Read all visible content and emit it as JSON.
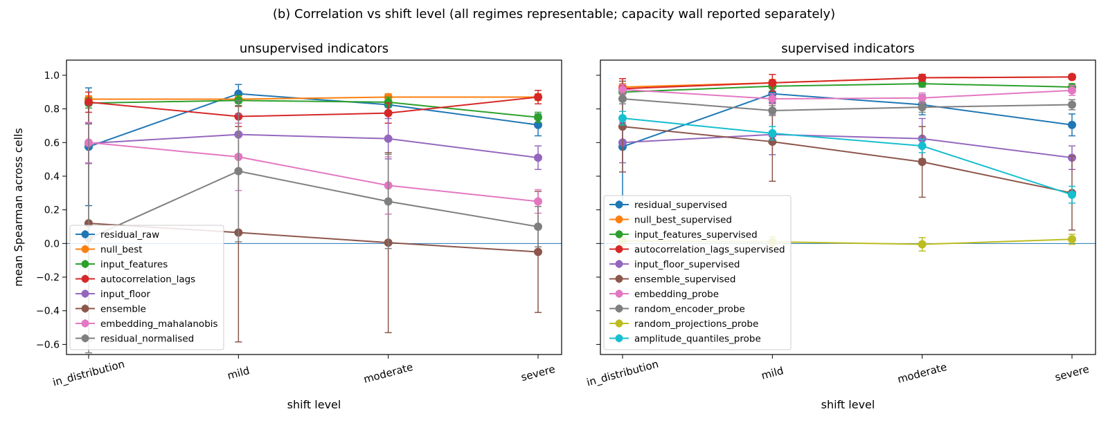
{
  "figure": {
    "suptitle": "(b) Correlation vs shift level (all regimes representable; capacity wall reported separately)"
  },
  "chart_data": [
    {
      "type": "line",
      "title": "unsupervised indicators",
      "xlabel": "shift level",
      "ylabel": "mean Spearman across cells",
      "categories": [
        "in_distribution",
        "mild",
        "moderate",
        "severe"
      ],
      "ylim": [
        -0.66,
        1.09
      ],
      "yticks": [
        "1.0",
        "0.8",
        "0.6",
        "0.4",
        "0.2",
        "0.0",
        "−0.2",
        "−0.4",
        "−0.6"
      ],
      "reference_line": 0,
      "grid": false,
      "legend_position": "lower-left",
      "series": [
        {
          "name": "residual_raw",
          "color": "#1f77b4",
          "values": [
            0.575,
            0.89,
            0.825,
            0.705
          ],
          "err_low": [
            0.35,
            0.055,
            0.06,
            0.065
          ],
          "err_high": [
            0.35,
            0.055,
            0.06,
            0.065
          ]
        },
        {
          "name": "null_best",
          "color": "#ff7f0e",
          "values": [
            0.858,
            0.858,
            0.87,
            0.87
          ],
          "err_low": [
            0.02,
            0.02,
            0.02,
            0.02
          ],
          "err_high": [
            0.02,
            0.02,
            0.02,
            0.02
          ]
        },
        {
          "name": "input_features",
          "color": "#2ca02c",
          "values": [
            0.835,
            0.85,
            0.84,
            0.75
          ],
          "err_low": [
            0.03,
            0.03,
            0.03,
            0.03
          ],
          "err_high": [
            0.03,
            0.03,
            0.03,
            0.03
          ]
        },
        {
          "name": "autocorrelation_lags",
          "color": "#d62728",
          "values": [
            0.84,
            0.755,
            0.775,
            0.87
          ],
          "err_low": [
            0.06,
            0.06,
            0.06,
            0.04
          ],
          "err_high": [
            0.06,
            0.06,
            0.06,
            0.04
          ]
        },
        {
          "name": "input_floor",
          "color": "#9467bd",
          "values": [
            0.595,
            0.648,
            0.623,
            0.51
          ],
          "err_low": [
            0.12,
            0.12,
            0.12,
            0.07
          ],
          "err_high": [
            0.12,
            0.12,
            0.12,
            0.07
          ]
        },
        {
          "name": "ensemble",
          "color": "#8c564b",
          "values": [
            0.12,
            0.065,
            0.005,
            -0.05
          ],
          "err_low": [
            0.7,
            0.65,
            0.535,
            0.36
          ],
          "err_high": [
            0.7,
            0.65,
            0.535,
            0.36
          ]
        },
        {
          "name": "embedding_mahalanobis",
          "color": "#e377c2",
          "values": [
            0.6,
            0.515,
            0.345,
            0.25
          ],
          "err_low": [
            0.12,
            0.2,
            0.17,
            0.07
          ],
          "err_high": [
            0.12,
            0.2,
            0.17,
            0.07
          ]
        },
        {
          "name": "residual_normalised",
          "color": "#7f7f7f",
          "values": [
            0.03,
            0.43,
            0.25,
            0.1
          ],
          "err_low": [
            0.68,
            0.42,
            0.28,
            0.12
          ],
          "err_high": [
            0.68,
            0.42,
            0.28,
            0.12
          ]
        }
      ]
    },
    {
      "type": "line",
      "title": "supervised indicators",
      "xlabel": "shift level",
      "ylabel": "",
      "categories": [
        "in_distribution",
        "mild",
        "moderate",
        "severe"
      ],
      "ylim": [
        -0.66,
        1.09
      ],
      "reference_line": 0,
      "grid": false,
      "legend_position": "lower-left",
      "series": [
        {
          "name": "residual_supervised",
          "color": "#1f77b4",
          "values": [
            0.575,
            0.89,
            0.825,
            0.705
          ],
          "err_low": [
            0.35,
            0.055,
            0.06,
            0.065
          ],
          "err_high": [
            0.35,
            0.055,
            0.06,
            0.065
          ]
        },
        {
          "name": "null_best_supervised",
          "color": "#ff7f0e",
          "values": [
            0.93,
            0.955,
            0.985,
            0.99
          ],
          "err_low": [
            0.02,
            0.02,
            0.02,
            0.015
          ],
          "err_high": [
            0.02,
            0.02,
            0.02,
            0.015
          ]
        },
        {
          "name": "input_features_supervised",
          "color": "#2ca02c",
          "values": [
            0.9,
            0.935,
            0.95,
            0.93
          ],
          "err_low": [
            0.03,
            0.03,
            0.02,
            0.02
          ],
          "err_high": [
            0.03,
            0.03,
            0.02,
            0.02
          ]
        },
        {
          "name": "autocorrelation_lags_supervised",
          "color": "#d62728",
          "values": [
            0.92,
            0.955,
            0.985,
            0.99
          ],
          "err_low": [
            0.06,
            0.05,
            0.02,
            0.015
          ],
          "err_high": [
            0.06,
            0.05,
            0.02,
            0.015
          ]
        },
        {
          "name": "input_floor_supervised",
          "color": "#9467bd",
          "values": [
            0.6,
            0.648,
            0.623,
            0.51
          ],
          "err_low": [
            0.12,
            0.12,
            0.12,
            0.07
          ],
          "err_high": [
            0.12,
            0.12,
            0.12,
            0.07
          ]
        },
        {
          "name": "ensemble_supervised",
          "color": "#8c564b",
          "values": [
            0.695,
            0.605,
            0.485,
            0.3
          ],
          "err_low": [
            0.27,
            0.235,
            0.21,
            0.22
          ],
          "err_high": [
            0.27,
            0.235,
            0.21,
            0.22
          ]
        },
        {
          "name": "embedding_probe",
          "color": "#e377c2",
          "values": [
            0.915,
            0.86,
            0.865,
            0.91
          ],
          "err_low": [
            0.03,
            0.03,
            0.03,
            0.03
          ],
          "err_high": [
            0.03,
            0.03,
            0.03,
            0.03
          ]
        },
        {
          "name": "random_encoder_probe",
          "color": "#7f7f7f",
          "values": [
            0.86,
            0.79,
            0.81,
            0.825
          ],
          "err_low": [
            0.03,
            0.03,
            0.03,
            0.03
          ],
          "err_high": [
            0.03,
            0.03,
            0.03,
            0.03
          ]
        },
        {
          "name": "random_projections_probe",
          "color": "#bcbd22",
          "values": [
            0.015,
            0.01,
            -0.005,
            0.025
          ],
          "err_low": [
            0.03,
            0.03,
            0.04,
            0.03
          ],
          "err_high": [
            0.03,
            0.03,
            0.04,
            0.03
          ]
        },
        {
          "name": "amplitude_quantiles_probe",
          "color": "#17becf",
          "values": [
            0.745,
            0.655,
            0.58,
            0.29
          ],
          "err_low": [
            0.04,
            0.04,
            0.04,
            0.05
          ],
          "err_high": [
            0.04,
            0.04,
            0.04,
            0.05
          ]
        }
      ]
    }
  ]
}
